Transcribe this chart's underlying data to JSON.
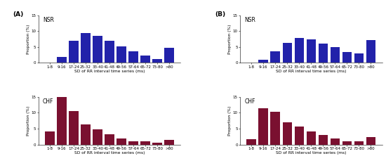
{
  "categories": [
    "1-8",
    "9-16",
    "17-24",
    "25-32",
    "33-40",
    "41-48",
    "49-56",
    "57-64",
    "65-72",
    "73-80",
    ">80"
  ],
  "A_NSR": [
    0.1,
    1.8,
    7.0,
    9.4,
    8.4,
    6.8,
    5.2,
    3.5,
    2.2,
    1.2,
    4.7
  ],
  "A_CHF": [
    4.0,
    15.0,
    10.5,
    6.4,
    4.7,
    3.3,
    2.0,
    1.1,
    0.9,
    0.6,
    1.5
  ],
  "B_NSR": [
    0.1,
    0.9,
    3.5,
    6.2,
    7.9,
    7.3,
    6.0,
    5.0,
    3.3,
    2.9,
    7.2
  ],
  "B_CHF": [
    1.7,
    11.5,
    10.4,
    7.1,
    5.6,
    4.2,
    3.0,
    1.9,
    1.1,
    0.9,
    2.3
  ],
  "nsr_color": "#2222AA",
  "chf_color": "#7A1030",
  "ylabel": "Proportion (%)",
  "xlabel": "SD of RR interval time series (ms)",
  "ylim": [
    0,
    15
  ],
  "yticks": [
    0,
    5,
    10,
    15
  ],
  "label_A": "(A)",
  "label_B": "(B)",
  "label_NSR": "NSR",
  "label_CHF": "CHF",
  "tick_fontsize": 4.0,
  "label_fontsize": 4.2,
  "sublabel_fontsize": 5.5,
  "panel_fontsize": 6.5
}
